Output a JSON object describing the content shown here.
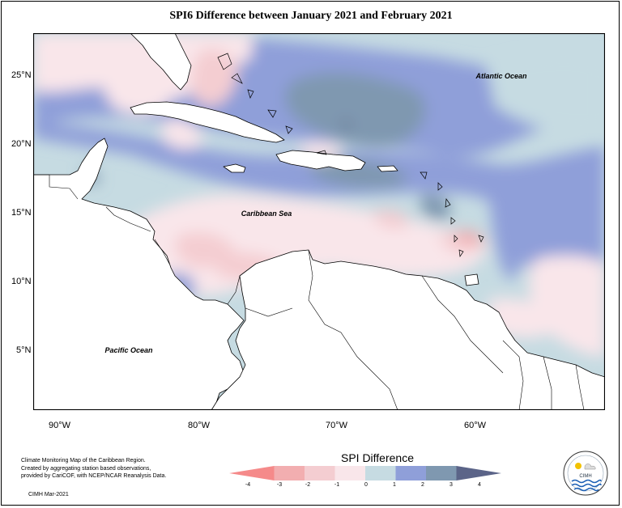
{
  "title": "SPI6 Difference between January 2021 and February 2021",
  "map": {
    "labels": {
      "atlantic": "Atlantic Ocean",
      "caribbean": "Caribbean Sea",
      "pacific": "Pacific Ocean"
    },
    "lat_ticks": [
      "25°N",
      "20°N",
      "15°N",
      "10°N",
      "5°N"
    ],
    "lon_ticks": [
      "90°W",
      "80°W",
      "70°W",
      "60°W"
    ]
  },
  "legend": {
    "title": "SPI Difference",
    "ticks": [
      "-4",
      "-3",
      "-2",
      "-1",
      "0",
      "1",
      "2",
      "3",
      "4"
    ],
    "colors": [
      "#f58a8a",
      "#f2aeb0",
      "#f4cdd1",
      "#f9e6ea",
      "#c6dbe2",
      "#8f9fd9",
      "#7f98b0",
      "#5b6488"
    ]
  },
  "footer": {
    "line1": "Climate Monitoring Map of the Caribbean Region.",
    "line2": "Created by aggregating station based observations,",
    "line3": "provided by CariCOF, with NCEP/NCAR Reanalysis Data.",
    "credit": "CIMH Mar-2021"
  },
  "logo": {
    "text": "CIMH"
  }
}
